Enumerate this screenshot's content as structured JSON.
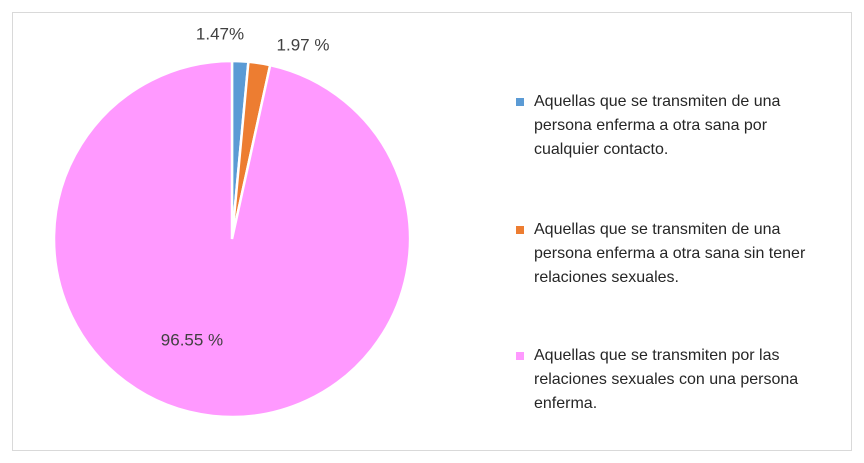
{
  "chart_data": {
    "type": "pie",
    "categories": [
      "Aquellas que se transmiten de una persona enferma a otra sana por cualquier contacto.",
      "Aquellas que se transmiten de una persona enferma a otra sana sin tener relaciones sexuales.",
      "Aquellas que se transmiten por las relaciones sexuales con una persona enferma."
    ],
    "values": [
      1.47,
      1.97,
      96.55
    ],
    "value_labels": [
      "1.47%",
      "1.97 %",
      "96.55 %"
    ],
    "colors": [
      "#5b9bd5",
      "#ed7d31",
      "#ff99ff"
    ],
    "legend": "right"
  }
}
